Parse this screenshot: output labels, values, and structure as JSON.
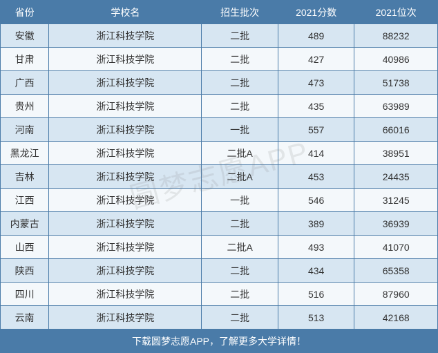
{
  "table": {
    "headers": {
      "province": "省份",
      "school": "学校名",
      "batch": "招生批次",
      "score": "2021分数",
      "rank": "2021位次"
    },
    "header_bg": "#4a7ba8",
    "header_color": "#ffffff",
    "row_even_bg": "#d7e6f2",
    "row_odd_bg": "#f4f8fb",
    "border_color": "#4a7ba8",
    "text_color": "#333333",
    "font_size": 14,
    "column_widths": {
      "province": 70,
      "school": 220,
      "batch": 110,
      "score": 110,
      "rank": 120
    },
    "rows": [
      {
        "province": "安徽",
        "school": "浙江科技学院",
        "batch": "二批",
        "score": "489",
        "rank": "88232"
      },
      {
        "province": "甘肃",
        "school": "浙江科技学院",
        "batch": "二批",
        "score": "427",
        "rank": "40986"
      },
      {
        "province": "广西",
        "school": "浙江科技学院",
        "batch": "二批",
        "score": "473",
        "rank": "51738"
      },
      {
        "province": "贵州",
        "school": "浙江科技学院",
        "batch": "二批",
        "score": "435",
        "rank": "63989"
      },
      {
        "province": "河南",
        "school": "浙江科技学院",
        "batch": "一批",
        "score": "557",
        "rank": "66016"
      },
      {
        "province": "黑龙江",
        "school": "浙江科技学院",
        "batch": "二批A",
        "score": "414",
        "rank": "38951"
      },
      {
        "province": "吉林",
        "school": "浙江科技学院",
        "batch": "二批A",
        "score": "453",
        "rank": "24435"
      },
      {
        "province": "江西",
        "school": "浙江科技学院",
        "batch": "一批",
        "score": "546",
        "rank": "31245"
      },
      {
        "province": "内蒙古",
        "school": "浙江科技学院",
        "batch": "二批",
        "score": "389",
        "rank": "36939"
      },
      {
        "province": "山西",
        "school": "浙江科技学院",
        "batch": "二批A",
        "score": "493",
        "rank": "41070"
      },
      {
        "province": "陕西",
        "school": "浙江科技学院",
        "batch": "二批",
        "score": "434",
        "rank": "65358"
      },
      {
        "province": "四川",
        "school": "浙江科技学院",
        "batch": "二批",
        "score": "516",
        "rank": "87960"
      },
      {
        "province": "云南",
        "school": "浙江科技学院",
        "batch": "二批",
        "score": "513",
        "rank": "42168"
      }
    ],
    "footer_text": "下载圆梦志愿APP，了解更多大学详情！",
    "footer_bg": "#4a7ba8",
    "footer_color": "#ffffff"
  },
  "watermark": {
    "text": "圆梦志愿APP",
    "color": "rgba(120, 120, 120, 0.15)",
    "font_size": 42
  }
}
